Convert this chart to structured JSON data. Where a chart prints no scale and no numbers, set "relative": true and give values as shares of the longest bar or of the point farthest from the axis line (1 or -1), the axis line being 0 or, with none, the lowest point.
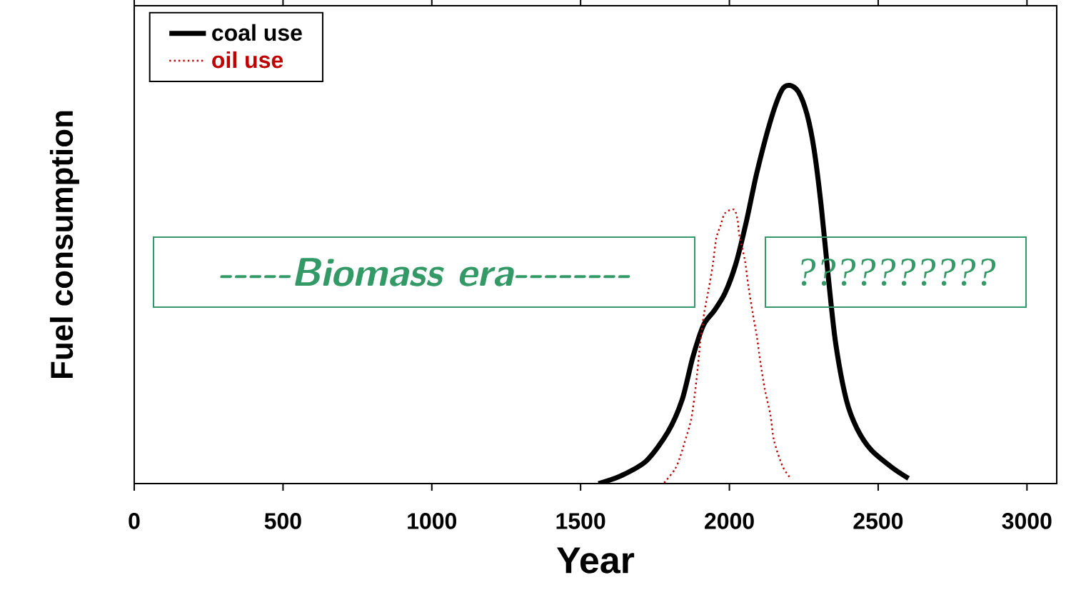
{
  "chart_data": {
    "type": "line",
    "relative": true,
    "xlabel": "Year",
    "ylabel": "Fuel consumption",
    "xlim": [
      0,
      3100
    ],
    "xticks": [
      0,
      500,
      1000,
      1500,
      2000,
      2500,
      3000
    ],
    "tick_labels": "x",
    "legend": "top left",
    "grid": false,
    "marker": "none",
    "annotations": [
      "-----Biomass era--------",
      "??????????"
    ],
    "series": [
      {
        "name": "coal use",
        "color": "#000000",
        "line_style": "solid",
        "x": [
          1560,
          1637,
          1721,
          1793,
          1841,
          1877,
          1913,
          1949,
          1985,
          2021,
          2057,
          2093,
          2141,
          2177,
          2203,
          2232,
          2261,
          2285,
          2309,
          2333,
          2357,
          2393,
          2429,
          2477,
          2549,
          2602
        ],
        "values": [
          0,
          0.02,
          0.057,
          0.129,
          0.21,
          0.317,
          0.398,
          0.434,
          0.478,
          0.55,
          0.658,
          0.783,
          0.918,
          0.989,
          1,
          0.984,
          0.927,
          0.837,
          0.694,
          0.514,
          0.353,
          0.21,
          0.138,
          0.084,
          0.039,
          0.013
        ]
      },
      {
        "name": "oil use",
        "color": "#c00000",
        "line_style": "dotted",
        "x": [
          1781,
          1817,
          1834,
          1848,
          1872,
          1889,
          1903,
          1915,
          1930,
          1944,
          1956,
          1970,
          1985,
          2016,
          2028,
          2033,
          2052,
          2064,
          2078,
          2093,
          2105,
          2119,
          2138,
          2150,
          2179,
          2206
        ],
        "values": [
          0.002,
          0.036,
          0.066,
          0.1,
          0.163,
          0.258,
          0.36,
          0.427,
          0.487,
          0.548,
          0.616,
          0.647,
          0.679,
          0.688,
          0.66,
          0.625,
          0.561,
          0.495,
          0.43,
          0.366,
          0.301,
          0.237,
          0.172,
          0.108,
          0.043,
          0.013
        ]
      }
    ]
  }
}
